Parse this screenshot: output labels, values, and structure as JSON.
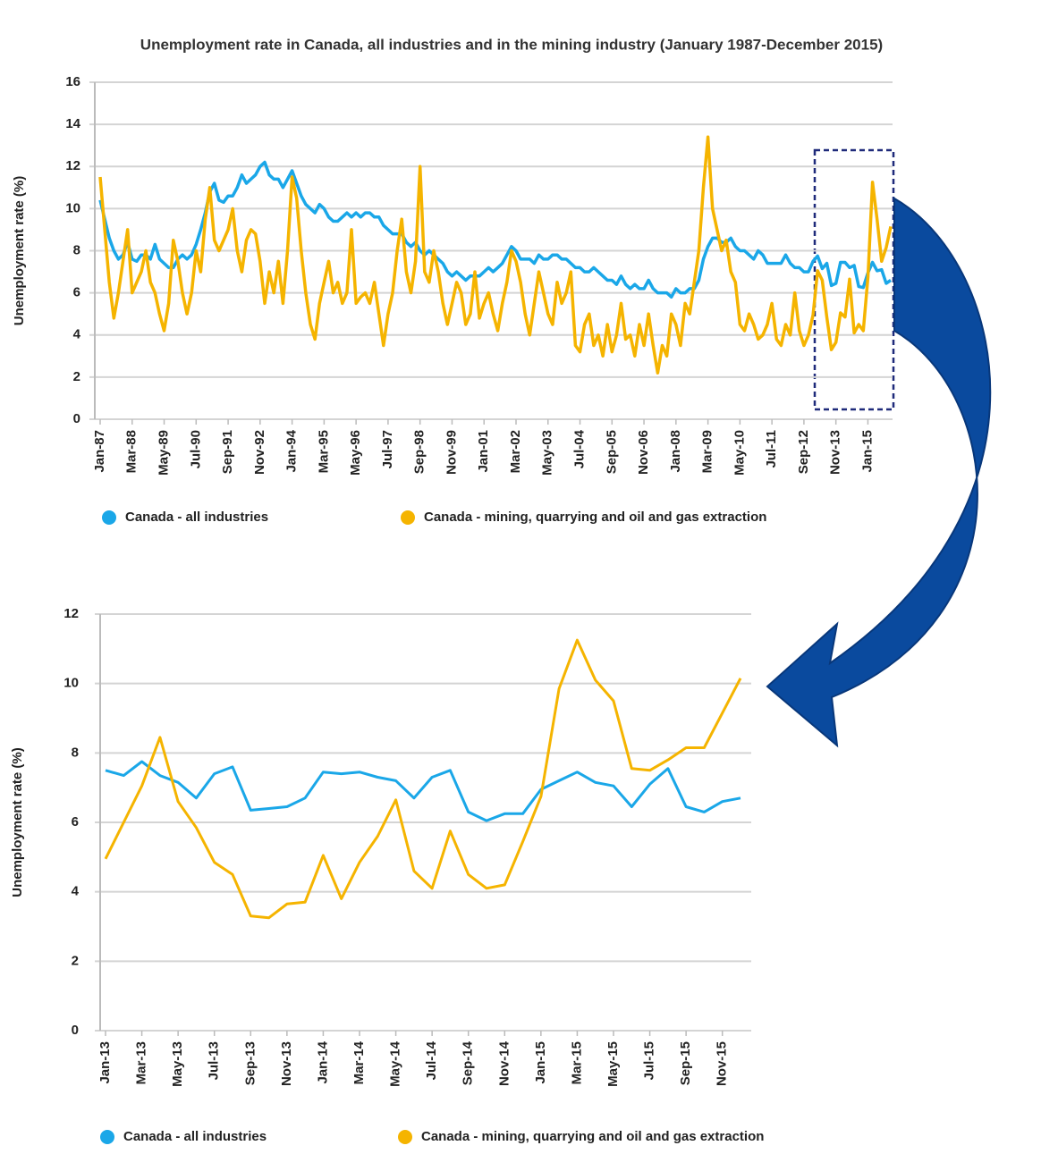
{
  "chart_data": [
    {
      "type": "line",
      "title": "Unemployment rate in Canada, all industries and in the mining industry (January 1987-December 2015)",
      "y_label": "Unemployment rate (%)",
      "ylim": [
        0,
        16
      ],
      "yticks": [
        0,
        2,
        4,
        6,
        8,
        10,
        12,
        14,
        16
      ],
      "grid": true,
      "categories": [
        "Jan-87",
        null,
        null,
        null,
        null,
        null,
        null,
        "Mar-88",
        null,
        null,
        null,
        null,
        null,
        null,
        "May-89",
        null,
        null,
        null,
        null,
        null,
        null,
        "Jul-90",
        null,
        null,
        null,
        null,
        null,
        null,
        "Sep-91",
        null,
        null,
        null,
        null,
        null,
        null,
        "Nov-92",
        null,
        null,
        null,
        null,
        null,
        null,
        "Jan-94",
        null,
        null,
        null,
        null,
        null,
        null,
        "Mar-95",
        null,
        null,
        null,
        null,
        null,
        null,
        "May-96",
        null,
        null,
        null,
        null,
        null,
        null,
        "Jul-97",
        null,
        null,
        null,
        null,
        null,
        null,
        "Sep-98",
        null,
        null,
        null,
        null,
        null,
        null,
        "Nov-99",
        null,
        null,
        null,
        null,
        null,
        null,
        "Jan-01",
        null,
        null,
        null,
        null,
        null,
        null,
        "Mar-02",
        null,
        null,
        null,
        null,
        null,
        null,
        "May-03",
        null,
        null,
        null,
        null,
        null,
        null,
        "Jul-04",
        null,
        null,
        null,
        null,
        null,
        null,
        "Sep-05",
        null,
        null,
        null,
        null,
        null,
        null,
        "Nov-06",
        null,
        null,
        null,
        null,
        null,
        null,
        "Jan-08",
        null,
        null,
        null,
        null,
        null,
        null,
        "Mar-09",
        null,
        null,
        null,
        null,
        null,
        null,
        "May-10",
        null,
        null,
        null,
        null,
        null,
        null,
        "Jul-11",
        null,
        null,
        null,
        null,
        null,
        null,
        "Sep-12",
        null,
        null,
        null,
        null,
        null,
        null,
        "Nov-13",
        null,
        null,
        null,
        null,
        null,
        null,
        "Jan-15",
        null,
        null,
        null,
        null,
        null
      ],
      "series": [
        {
          "name": "Canada - all industries",
          "color": "#1aa7e8",
          "values": [
            10.4,
            9.5,
            8.6,
            8.0,
            7.6,
            7.8,
            8.4,
            7.6,
            7.5,
            7.8,
            7.8,
            7.6,
            8.3,
            7.6,
            7.4,
            7.2,
            7.2,
            7.6,
            7.8,
            7.6,
            7.8,
            8.3,
            9.0,
            9.8,
            10.8,
            11.2,
            10.4,
            10.3,
            10.6,
            10.6,
            11.0,
            11.6,
            11.2,
            11.4,
            11.6,
            12.0,
            12.2,
            11.6,
            11.4,
            11.4,
            11.0,
            11.4,
            11.8,
            11.2,
            10.6,
            10.2,
            10.0,
            9.8,
            10.2,
            10.0,
            9.6,
            9.4,
            9.4,
            9.6,
            9.8,
            9.6,
            9.8,
            9.6,
            9.8,
            9.8,
            9.6,
            9.6,
            9.2,
            9.0,
            8.8,
            8.8,
            8.8,
            8.4,
            8.2,
            8.4,
            8.0,
            7.8,
            8.0,
            7.8,
            7.6,
            7.4,
            7.0,
            6.8,
            7.0,
            6.8,
            6.6,
            6.8,
            6.8,
            6.8,
            7.0,
            7.2,
            7.0,
            7.2,
            7.4,
            7.8,
            8.2,
            8.0,
            7.6,
            7.6,
            7.6,
            7.4,
            7.8,
            7.6,
            7.6,
            7.8,
            7.8,
            7.6,
            7.6,
            7.4,
            7.2,
            7.2,
            7.0,
            7.0,
            7.2,
            7.0,
            6.8,
            6.6,
            6.6,
            6.4,
            6.8,
            6.4,
            6.2,
            6.4,
            6.2,
            6.2,
            6.6,
            6.2,
            6.0,
            6.0,
            6.0,
            5.8,
            6.2,
            6.0,
            6.0,
            6.2,
            6.2,
            6.6,
            7.6,
            8.2,
            8.6,
            8.6,
            8.4,
            8.4,
            8.6,
            8.2,
            8.0,
            8.0,
            7.8,
            7.6,
            8.0,
            7.8,
            7.4,
            7.4,
            7.4,
            7.4,
            7.8,
            7.4,
            7.2,
            7.2,
            7.0,
            7.0,
            7.5,
            7.75,
            7.15,
            7.4,
            6.35,
            6.45,
            7.45,
            7.45,
            7.2,
            7.3,
            6.3,
            6.25,
            6.95,
            7.45,
            7.05,
            7.1,
            6.45,
            6.6
          ]
        },
        {
          "name": "Canada - mining, quarrying and oil and gas extraction",
          "color": "#f5b400",
          "values": [
            11.5,
            9.0,
            6.5,
            4.8,
            6.0,
            7.5,
            9.0,
            6.0,
            6.5,
            7.0,
            8.0,
            6.5,
            6.0,
            5.0,
            4.2,
            5.5,
            8.5,
            7.5,
            6.0,
            5.0,
            6.0,
            8.0,
            7.0,
            9.5,
            11.0,
            8.5,
            8.0,
            8.5,
            9.0,
            10.0,
            8.0,
            7.0,
            8.5,
            9.0,
            8.8,
            7.5,
            5.5,
            7.0,
            6.0,
            7.5,
            5.5,
            8.0,
            11.5,
            10.5,
            8.0,
            6.0,
            4.5,
            3.8,
            5.5,
            6.5,
            7.5,
            6.0,
            6.5,
            5.5,
            6.0,
            9.0,
            5.5,
            5.8,
            6.0,
            5.5,
            6.5,
            5.0,
            3.5,
            5.0,
            6.0,
            8.0,
            9.5,
            7.0,
            6.0,
            7.5,
            12.0,
            7.0,
            6.5,
            8.0,
            7.0,
            5.5,
            4.5,
            5.5,
            6.5,
            6.0,
            4.5,
            5.0,
            7.0,
            4.8,
            5.5,
            6.0,
            5.0,
            4.2,
            5.5,
            6.5,
            8.0,
            7.5,
            6.5,
            5.0,
            4.0,
            5.5,
            7.0,
            6.0,
            5.0,
            4.5,
            6.5,
            5.5,
            6.0,
            7.0,
            3.5,
            3.2,
            4.5,
            5.0,
            3.5,
            4.0,
            3.0,
            4.5,
            3.2,
            4.0,
            5.5,
            3.8,
            4.0,
            3.0,
            4.5,
            3.5,
            5.0,
            3.5,
            2.2,
            3.5,
            3.0,
            5.0,
            4.5,
            3.5,
            5.5,
            5.0,
            6.5,
            8.0,
            11.0,
            13.4,
            10.0,
            9.0,
            8.0,
            8.5,
            7.0,
            6.5,
            4.5,
            4.2,
            5.0,
            4.5,
            3.8,
            4.0,
            4.5,
            5.5,
            3.8,
            3.5,
            4.5,
            4.0,
            6.0,
            4.2,
            3.5,
            4.0,
            4.95,
            7.05,
            6.6,
            4.85,
            3.3,
            3.65,
            5.05,
            4.85,
            6.65,
            4.1,
            4.5,
            4.2,
            6.75,
            11.25,
            9.5,
            7.5,
            8.15,
            9.15
          ]
        }
      ]
    },
    {
      "type": "line",
      "y_label": "Unemployment rate (%)",
      "ylim": [
        0,
        12
      ],
      "yticks": [
        0,
        2,
        4,
        6,
        8,
        10,
        12
      ],
      "grid": true,
      "categories": [
        "Jan-13",
        null,
        "Mar-13",
        null,
        "May-13",
        null,
        "Jul-13",
        null,
        "Sep-13",
        null,
        "Nov-13",
        null,
        "Jan-14",
        null,
        "Mar-14",
        null,
        "May-14",
        null,
        "Jul-14",
        null,
        "Sep-14",
        null,
        "Nov-14",
        null,
        "Jan-15",
        null,
        "Mar-15",
        null,
        "May-15",
        null,
        "Jul-15",
        null,
        "Sep-15",
        null,
        "Nov-15",
        null
      ],
      "series": [
        {
          "name": "Canada - all industries",
          "color": "#1aa7e8",
          "values": [
            7.5,
            7.35,
            7.75,
            7.35,
            7.15,
            6.7,
            7.4,
            7.6,
            6.35,
            6.4,
            6.45,
            6.7,
            7.45,
            7.4,
            7.45,
            7.3,
            7.2,
            6.7,
            7.3,
            7.5,
            6.3,
            6.05,
            6.25,
            6.25,
            6.95,
            7.2,
            7.45,
            7.15,
            7.05,
            6.45,
            7.1,
            7.55,
            6.45,
            6.3,
            6.6,
            6.7
          ]
        },
        {
          "name": "Canada - mining, quarrying and oil and gas extraction",
          "color": "#f5b400",
          "values": [
            4.95,
            6.0,
            7.05,
            8.45,
            6.6,
            5.85,
            4.85,
            4.5,
            3.3,
            3.25,
            3.65,
            3.7,
            5.05,
            3.8,
            4.85,
            5.6,
            6.65,
            4.6,
            4.1,
            5.75,
            4.5,
            4.1,
            4.2,
            5.45,
            6.75,
            9.85,
            11.25,
            10.1,
            9.5,
            7.55,
            7.5,
            7.8,
            8.15,
            8.15,
            9.15,
            10.15
          ]
        }
      ]
    }
  ]
}
